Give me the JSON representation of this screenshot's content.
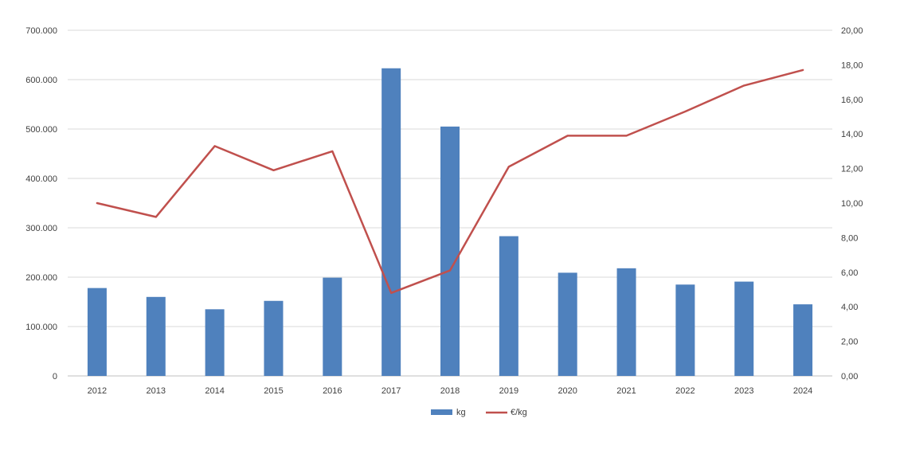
{
  "chart_data": {
    "type": "bar",
    "categories": [
      "2012",
      "2013",
      "2014",
      "2015",
      "2016",
      "2017",
      "2018",
      "2019",
      "2020",
      "2021",
      "2022",
      "2023",
      "2024"
    ],
    "series": [
      {
        "name": "kg",
        "type": "bar",
        "axis": "left",
        "color": "#4f81bd",
        "values": [
          178000,
          160000,
          135000,
          152000,
          199000,
          623000,
          505000,
          283000,
          209000,
          218000,
          185000,
          191000,
          145000
        ]
      },
      {
        "name": "€/kg",
        "type": "line",
        "axis": "right",
        "color": "#c0504d",
        "values": [
          10.0,
          9.2,
          13.3,
          11.9,
          13.0,
          4.8,
          6.1,
          12.1,
          13.9,
          13.9,
          15.3,
          16.8,
          17.7
        ]
      }
    ],
    "y_left": {
      "ylim": [
        0,
        700000
      ],
      "ticks": [
        0,
        100000,
        200000,
        300000,
        400000,
        500000,
        600000,
        700000
      ],
      "tick_labels": [
        "0",
        "100.000",
        "200.000",
        "300.000",
        "400.000",
        "500.000",
        "600.000",
        "700.000"
      ]
    },
    "y_right": {
      "ylim": [
        0,
        20
      ],
      "ticks": [
        0,
        2,
        4,
        6,
        8,
        10,
        12,
        14,
        16,
        18,
        20
      ],
      "tick_labels": [
        "0,00",
        "2,00",
        "4,00",
        "6,00",
        "8,00",
        "10,00",
        "12,00",
        "14,00",
        "16,00",
        "18,00",
        "20,00"
      ]
    },
    "title": "",
    "xlabel": "",
    "ylabel": "",
    "grid": true,
    "legend": {
      "position": "bottom",
      "entries": [
        "kg",
        "€/kg"
      ]
    }
  }
}
